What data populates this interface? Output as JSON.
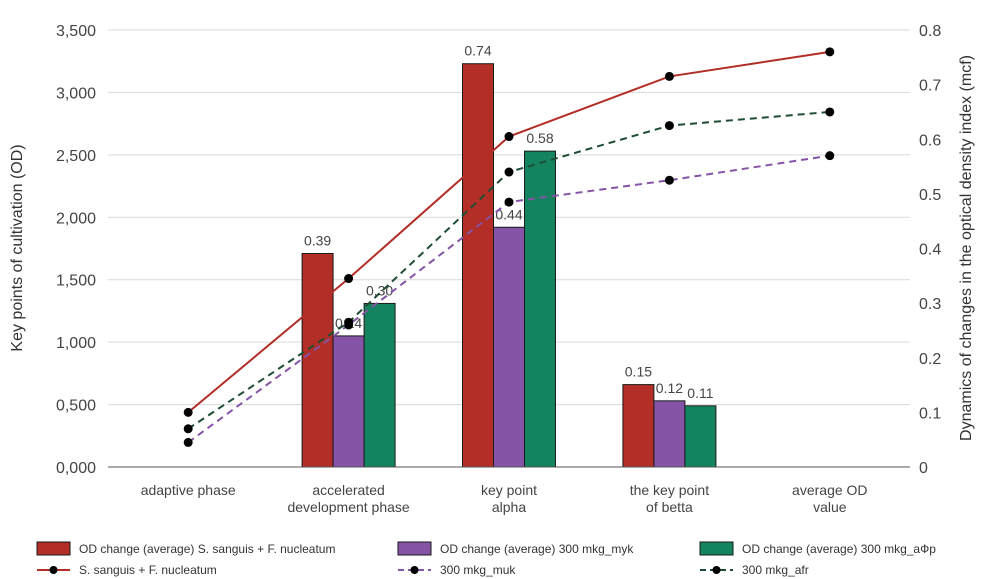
{
  "chart_data": {
    "type": "bar",
    "categories": [
      [
        "adaptive phase"
      ],
      [
        "accelerated",
        "development phase"
      ],
      [
        "key point",
        "alpha"
      ],
      [
        "the key point",
        "of betta"
      ],
      [
        "average OD",
        "value"
      ]
    ],
    "ylabel": "Key points of cultivation (OD)",
    "y2label": "Dynamics of changes in the optical density index (mcf)",
    "ylim": [
      0,
      3500
    ],
    "y2lim": [
      0,
      0.8
    ],
    "yticks": [
      "0,000",
      "0,500",
      "1,000",
      "1,500",
      "2,000",
      "2,500",
      "3,000",
      "3,500"
    ],
    "y2ticks": [
      "0",
      "0.1",
      "0.2",
      "0.3",
      "0.4",
      "0.5",
      "0.6",
      "0.7",
      "0.8"
    ],
    "grid": true,
    "legend_position": "bottom",
    "bar_series": [
      {
        "name": "OD change (average) S. sanguis + F. nucleatum",
        "color": "#b22e27",
        "values": [
          null,
          1710,
          3230,
          660,
          null
        ],
        "labels": [
          null,
          "0.39",
          "0.74",
          "0.15",
          null
        ]
      },
      {
        "name": "OD change (average) 300 mkg_myk",
        "color": "#8654a6",
        "values": [
          null,
          1050,
          1920,
          530,
          null
        ],
        "labels": [
          null,
          "0.24",
          "0.44",
          "0.12",
          null
        ]
      },
      {
        "name": "OD change (average) 300 mkg_аФр",
        "color": "#148460",
        "values": [
          null,
          1310,
          2530,
          490,
          null
        ],
        "labels": [
          null,
          "0.30",
          "0.58",
          "0.11",
          null
        ]
      }
    ],
    "line_series": [
      {
        "name": "S. sanguis + F. nucleatum",
        "color": "#b22e27",
        "dash": "solid",
        "values": [
          0.1,
          0.345,
          0.605,
          0.715,
          0.76
        ]
      },
      {
        "name": "300 mkg_muk",
        "color": "#8654a6",
        "dash": "dashed",
        "values": [
          0.045,
          0.26,
          0.485,
          0.525,
          0.57
        ]
      },
      {
        "name": "300 mkg_afr",
        "color": "#1e4d33",
        "dash": "dashed",
        "values": [
          0.07,
          0.265,
          0.54,
          0.625,
          0.65
        ]
      }
    ]
  }
}
